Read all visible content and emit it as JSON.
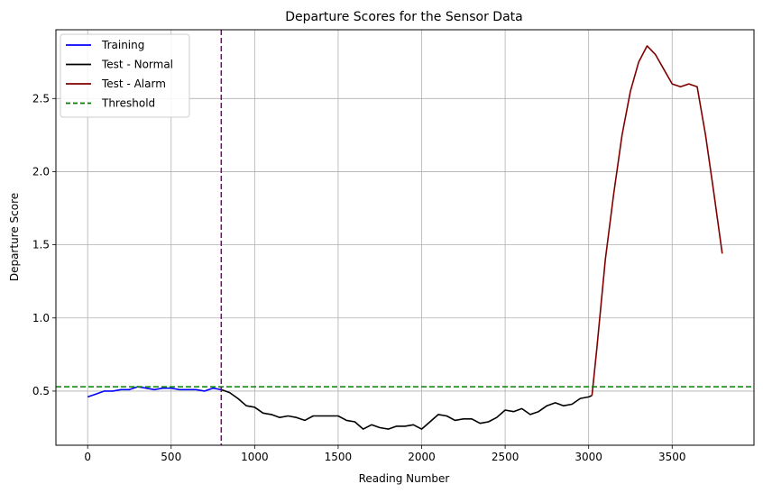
{
  "chart_data": {
    "type": "line",
    "title": "Departure Scores for the Sensor Data",
    "xlabel": "Reading Number",
    "ylabel": "Departure Score",
    "xlim": [
      -190,
      3990
    ],
    "ylim": [
      0.13,
      2.97
    ],
    "x_ticks": [
      0,
      500,
      1000,
      1500,
      2000,
      2500,
      3000,
      3500
    ],
    "y_ticks": [
      0.5,
      1.0,
      1.5,
      2.0,
      2.5
    ],
    "x_tick_labels": [
      "0",
      "500",
      "1000",
      "1500",
      "2000",
      "2500",
      "3000",
      "3500"
    ],
    "y_tick_labels": [
      "0.5",
      "1.0",
      "1.5",
      "2.0",
      "2.5"
    ],
    "grid": true,
    "legend_position": "top-left",
    "series": [
      {
        "name": "Training",
        "color": "#0000ff",
        "style": "solid",
        "x": [
          0,
          50,
          100,
          150,
          200,
          250,
          300,
          350,
          400,
          450,
          500,
          550,
          600,
          650,
          700,
          750,
          800
        ],
        "y": [
          0.46,
          0.48,
          0.5,
          0.5,
          0.51,
          0.51,
          0.53,
          0.52,
          0.51,
          0.52,
          0.52,
          0.51,
          0.51,
          0.51,
          0.5,
          0.52,
          0.51
        ]
      },
      {
        "name": "Test - Normal",
        "color": "#000000",
        "style": "solid",
        "x": [
          800,
          850,
          900,
          950,
          1000,
          1050,
          1100,
          1150,
          1200,
          1250,
          1300,
          1350,
          1400,
          1450,
          1500,
          1550,
          1600,
          1650,
          1700,
          1750,
          1800,
          1850,
          1900,
          1950,
          2000,
          2050,
          2100,
          2150,
          2200,
          2250,
          2300,
          2350,
          2400,
          2450,
          2500,
          2550,
          2600,
          2650,
          2700,
          2750,
          2800,
          2850,
          2900,
          2950,
          3000,
          3020
        ],
        "y": [
          0.51,
          0.49,
          0.45,
          0.4,
          0.39,
          0.35,
          0.34,
          0.32,
          0.33,
          0.32,
          0.3,
          0.33,
          0.33,
          0.33,
          0.33,
          0.3,
          0.29,
          0.24,
          0.27,
          0.25,
          0.24,
          0.26,
          0.26,
          0.27,
          0.24,
          0.29,
          0.34,
          0.33,
          0.3,
          0.31,
          0.31,
          0.28,
          0.29,
          0.32,
          0.37,
          0.36,
          0.38,
          0.34,
          0.36,
          0.4,
          0.42,
          0.4,
          0.41,
          0.45,
          0.46,
          0.47
        ]
      },
      {
        "name": "Test - Alarm",
        "color": "#800000",
        "style": "solid",
        "x": [
          3020,
          3050,
          3100,
          3150,
          3200,
          3250,
          3300,
          3350,
          3400,
          3450,
          3500,
          3550,
          3600,
          3650,
          3700,
          3750,
          3800
        ],
        "y": [
          0.47,
          0.8,
          1.4,
          1.85,
          2.25,
          2.55,
          2.75,
          2.86,
          2.8,
          2.7,
          2.6,
          2.58,
          2.6,
          2.58,
          2.25,
          1.85,
          1.44
        ]
      },
      {
        "name": "Threshold",
        "color": "#008000",
        "style": "dashed",
        "y_const": 0.53
      }
    ],
    "vline": {
      "x": 800,
      "color": "#800080",
      "style": "dashed"
    }
  }
}
